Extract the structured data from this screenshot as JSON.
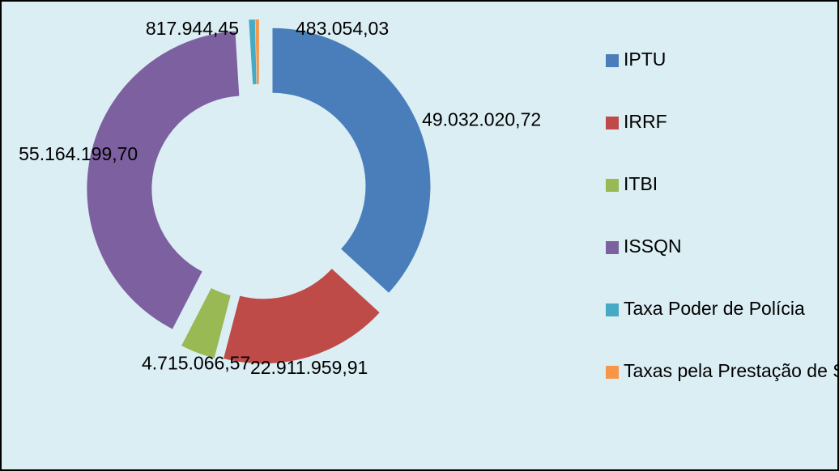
{
  "chart_data": {
    "type": "donut",
    "categories": [
      "IPTU",
      "IRRF",
      "ITBI",
      "ISSQN",
      "Taxa Poder de Polícia",
      "Taxas pela Prestação de Serviços"
    ],
    "values": [
      49032020.72,
      22911959.91,
      4715066.57,
      55164199.7,
      817944.45,
      483054.03
    ],
    "value_labels": [
      "49.032.020,72",
      "22.911.959,91",
      "4.715.066,57",
      "55.164.199,70",
      "817.944,45",
      "483.054,03"
    ],
    "colors": [
      "#4a7ebb",
      "#be4b48",
      "#98b954",
      "#7d60a0",
      "#46aac5",
      "#f79646"
    ],
    "legend": "right"
  }
}
